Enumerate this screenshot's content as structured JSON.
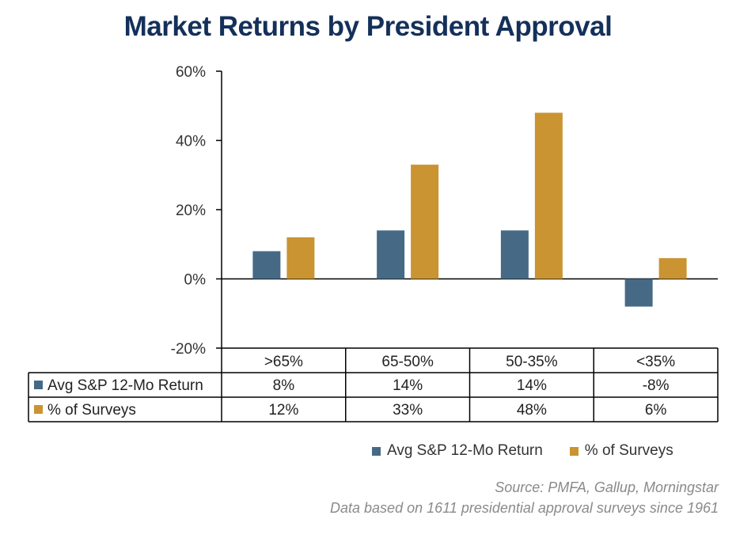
{
  "title": "Market Returns by President Approval",
  "chart_data": {
    "type": "bar",
    "categories": [
      ">65%",
      "65-50%",
      "50-35%",
      "<35%"
    ],
    "series": [
      {
        "name": "Avg S&P 12-Mo Return",
        "values": [
          8,
          14,
          14,
          -8
        ],
        "labels": [
          "8%",
          "14%",
          "14%",
          "-8%"
        ],
        "color": "#466a86"
      },
      {
        "name": "% of Surveys",
        "values": [
          12,
          33,
          48,
          6
        ],
        "labels": [
          "12%",
          "33%",
          "48%",
          "6%"
        ],
        "color": "#c99431"
      }
    ],
    "ylim": [
      -20,
      60
    ],
    "yticks": [
      -20,
      0,
      20,
      40,
      60
    ],
    "ytick_labels": [
      "-20%",
      "0%",
      "20%",
      "40%",
      "60%"
    ],
    "legend_position": "bottom-right",
    "grid": false
  },
  "source_lines": [
    "Source: PMFA, Gallup, Morningstar",
    "Data based on 1611 presidential approval surveys since 1961"
  ]
}
